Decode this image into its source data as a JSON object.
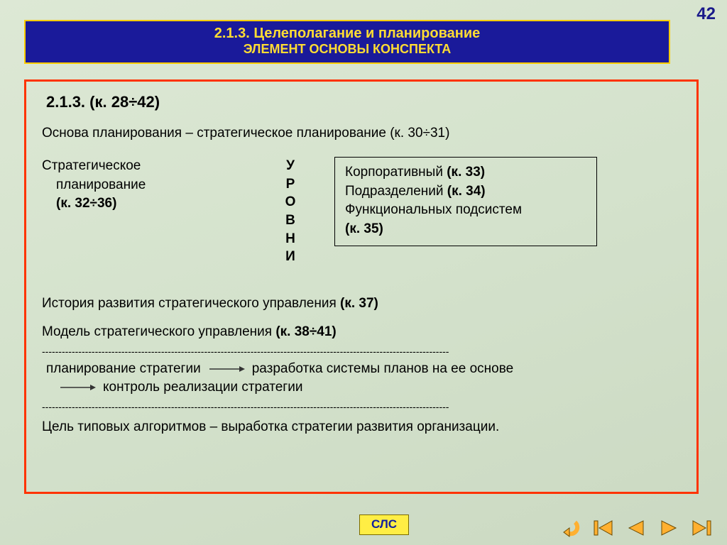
{
  "page_number": "42",
  "title": {
    "line1": "2.1.3. Целеполагание и планирование",
    "line2": "ЭЛЕМЕНТ ОСНОВЫ КОНСПЕКТА"
  },
  "section_heading": "2.1.3. (к. 28÷42)",
  "basis_line": "Основа планирования – стратегическое планирование  (к. 30÷31)",
  "left_col": {
    "l1": "Стратегическое",
    "l2": "планирование",
    "l3": "(к. 32÷36)"
  },
  "levels_vertical": "УРОВНИ",
  "right_box": {
    "r1a": "Корпоративный ",
    "r1b": "(к. 33)",
    "r2a": "Подразделений ",
    "r2b": "(к. 34)",
    "r3": "Функциональных подсистем",
    "r4": " (к. 35)"
  },
  "history_line": {
    "a": "История развития стратегического управления ",
    "b": "(к. 37)"
  },
  "model_line": {
    "a": "Модель стратегического управления ",
    "b": "(к. 38÷41)"
  },
  "dashes": "---------------------------------------------------------------------------------------------------------------------------",
  "flow": {
    "p1": "планирование стратегии",
    "p2": "разработка системы планов на ее основе",
    "p3": "контроль реализации стратегии"
  },
  "final_line": "Цель типовых алгоритмов – выработка стратегии развития организации.",
  "sls_label": "СЛС",
  "colors": {
    "title_bg": "#1a1a9a",
    "title_border": "#ffcc00",
    "title_text": "#ffdd33",
    "content_border": "#ff3300",
    "nav_fill": "#ffb030",
    "nav_stroke": "#6b4a00",
    "sls_bg": "#ffee44"
  }
}
